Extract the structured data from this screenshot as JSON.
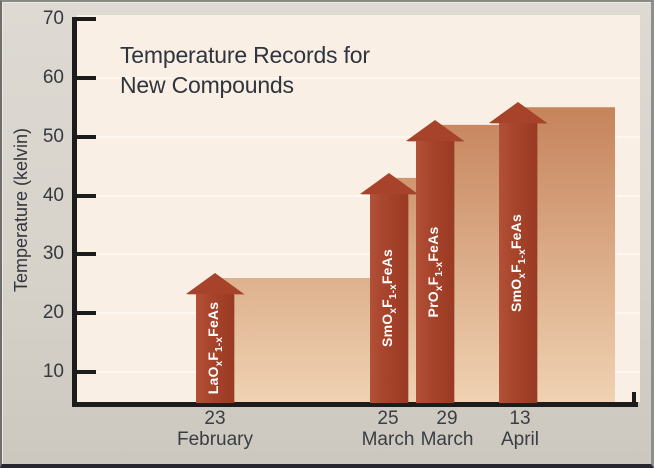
{
  "chart_data": {
    "type": "area",
    "subtype": "step-area-with-arrow-markers",
    "title": "Temperature Records for New Compounds",
    "title_lines": [
      "Temperature Records for",
      "New Compounds"
    ],
    "ylabel": "Temperature (kelvin)",
    "xlabel": "",
    "y_ticks": [
      70,
      60,
      50,
      40,
      30,
      20,
      10
    ],
    "ylim": [
      4,
      70
    ],
    "grid": "horizontal-on",
    "legend": "none",
    "categories": [
      "23 February",
      "25 March",
      "29 March",
      "13 April"
    ],
    "values": [
      26,
      43,
      52,
      55
    ],
    "points": [
      {
        "day": "23",
        "month": "February",
        "temperature_k": 26,
        "compound": "LaOxF1-xFeAs",
        "compound_parts": [
          {
            "t": "LaO"
          },
          {
            "t": "x",
            "sub": true
          },
          {
            "t": "F"
          },
          {
            "t": "1-x",
            "sub": true
          },
          {
            "t": "FeAs"
          }
        ]
      },
      {
        "day": "25",
        "month": "March",
        "temperature_k": 43,
        "compound": "SmOxF1-xFeAs",
        "compound_parts": [
          {
            "t": "SmO"
          },
          {
            "t": "x",
            "sub": true
          },
          {
            "t": "F"
          },
          {
            "t": "1-x",
            "sub": true
          },
          {
            "t": "FeAs"
          }
        ]
      },
      {
        "day": "29",
        "month": "March",
        "temperature_k": 52,
        "compound": "PrOxF1-xFeAs",
        "compound_parts": [
          {
            "t": "PrO"
          },
          {
            "t": "x",
            "sub": true
          },
          {
            "t": "F"
          },
          {
            "t": "1-x",
            "sub": true
          },
          {
            "t": "FeAs"
          }
        ]
      },
      {
        "day": "13",
        "month": "April",
        "temperature_k": 55,
        "compound": "SmOxF1-xFeAs",
        "compound_parts": [
          {
            "t": "SmO"
          },
          {
            "t": "x",
            "sub": true
          },
          {
            "t": "F"
          },
          {
            "t": "1-x",
            "sub": true
          },
          {
            "t": "FeAs"
          }
        ]
      }
    ],
    "colors": {
      "arrow": "#a6432a",
      "area_gradient_top": "#c5825a",
      "area_gradient_bottom": "#f0d3b3",
      "plot_background": "#f9efe5",
      "gridline": "#fef8f1",
      "axis": "#1c1c1c",
      "title_text": "#2f343d",
      "tick_text": "#36393f",
      "label_on_arrow": "#ffffff",
      "outer_background": "#d7d3cb"
    }
  }
}
